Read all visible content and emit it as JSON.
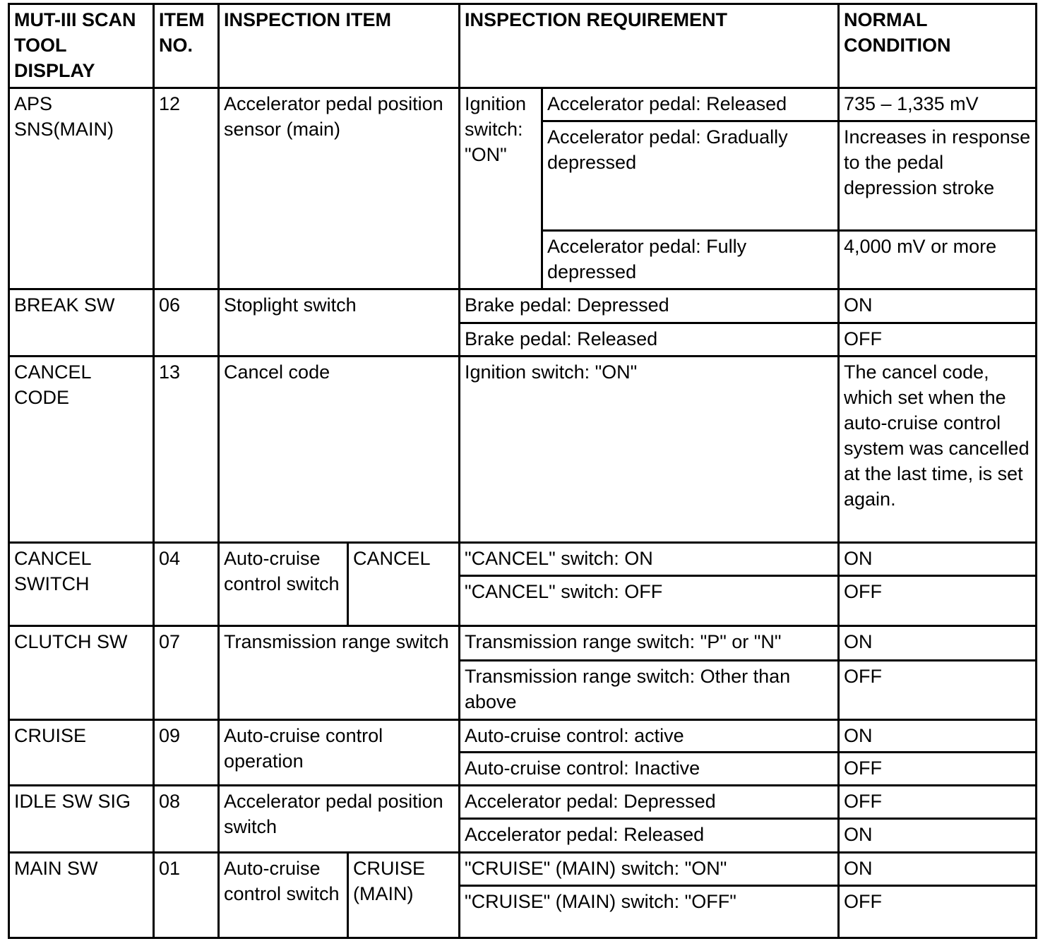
{
  "header": {
    "display": "MUT-III SCAN TOOL DISPLAY",
    "item_no": "ITEM NO.",
    "inspection_item": "INSPECTION ITEM",
    "requirement": "INSPECTION REQUIREMENT",
    "normal": "NORMAL CONDITION"
  },
  "rows": [
    {
      "display": "APS SNS(MAIN)",
      "item_no": "12",
      "item": "Accelerator pedal position sensor (main)",
      "group": "Ignition switch: \"ON\"",
      "conditions": [
        {
          "requirement": "Accelerator pedal: Released",
          "normal": "735 – 1,335 mV"
        },
        {
          "requirement": "Accelerator pedal: Gradually depressed",
          "normal": "Increases in response to the pedal depression stroke"
        },
        {
          "requirement": "Accelerator pedal: Fully depressed",
          "normal": "4,000 mV or more"
        }
      ]
    },
    {
      "display": "BREAK SW",
      "item_no": "06",
      "item": "Stoplight switch",
      "conditions": [
        {
          "requirement": "Brake pedal: Depressed",
          "normal": "ON"
        },
        {
          "requirement": "Brake pedal: Released",
          "normal": "OFF"
        }
      ]
    },
    {
      "display": "CANCEL CODE",
      "item_no": "13",
      "item": "Cancel code",
      "conditions": [
        {
          "requirement": "Ignition switch: \"ON\"",
          "normal": "The cancel code, which set when the auto-cruise control system was cancelled at the last time, is set again."
        }
      ]
    },
    {
      "display": "CANCEL SWITCH",
      "item_no": "04",
      "item": "Auto-cruise control switch",
      "sub_item": "CANCEL",
      "conditions": [
        {
          "requirement": "\"CANCEL\" switch: ON",
          "normal": "ON"
        },
        {
          "requirement": "\"CANCEL\" switch: OFF",
          "normal": "OFF"
        }
      ]
    },
    {
      "display": "CLUTCH SW",
      "item_no": "07",
      "item": "Transmission range switch",
      "conditions": [
        {
          "requirement": "Transmission range switch: \"P\" or \"N\"",
          "normal": "ON"
        },
        {
          "requirement": "Transmission range switch: Other than above",
          "normal": "OFF"
        }
      ]
    },
    {
      "display": "CRUISE",
      "item_no": "09",
      "item": "Auto-cruise control operation",
      "conditions": [
        {
          "requirement": "Auto-cruise control: active",
          "normal": "ON"
        },
        {
          "requirement": "Auto-cruise control: Inactive",
          "normal": "OFF"
        }
      ]
    },
    {
      "display": "IDLE SW SIG",
      "item_no": "08",
      "item": "Accelerator pedal position switch",
      "conditions": [
        {
          "requirement": "Accelerator pedal: Depressed",
          "normal": "OFF"
        },
        {
          "requirement": "Accelerator pedal: Released",
          "normal": "ON"
        }
      ]
    },
    {
      "display": "MAIN SW",
      "item_no": "01",
      "item": "Auto-cruise control switch",
      "sub_item": "CRUISE (MAIN)",
      "conditions": [
        {
          "requirement": "\"CRUISE\" (MAIN) switch: \"ON\"",
          "normal": "ON"
        },
        {
          "requirement": "\"CRUISE\" (MAIN) switch: \"OFF\"",
          "normal": "OFF"
        }
      ]
    }
  ]
}
